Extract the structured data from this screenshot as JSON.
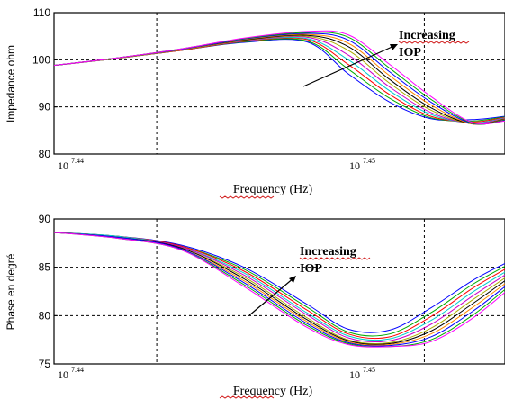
{
  "chart_data": [
    {
      "type": "line",
      "xlabel": "Frequency (Hz)",
      "ylabel": "Impedance ohm",
      "x_scale": "log",
      "xlim": [
        27300000,
        28380000
      ],
      "ylim": [
        80,
        110
      ],
      "y_ticks": [
        "80",
        "90",
        "100",
        "110"
      ],
      "x_tick_labels": [
        {
          "base": "10",
          "exp": "7.44",
          "x": 27542287
        },
        {
          "base": "10",
          "exp": "7.45",
          "x": 28183829
        }
      ],
      "grid": true,
      "annotation": {
        "line1": "Increasing",
        "line2": "IOP"
      },
      "x": [
        27300000,
        27450000,
        27600000,
        27750000,
        27900000,
        28000000,
        28100000,
        28200000,
        28300000,
        28380000
      ],
      "series": [
        {
          "color": "#0000ff",
          "values": [
            98.8,
            100.3,
            102.0,
            103.7,
            103.8,
            97.0,
            91.0,
            87.5,
            87.3,
            88.0
          ]
        },
        {
          "color": "#00aa00",
          "values": [
            98.8,
            100.3,
            102.0,
            103.8,
            104.0,
            98.0,
            91.8,
            87.7,
            87.0,
            87.9
          ]
        },
        {
          "color": "#ff0000",
          "values": [
            98.8,
            100.3,
            102.0,
            103.9,
            104.3,
            99.0,
            92.6,
            88.0,
            86.8,
            87.8
          ]
        },
        {
          "color": "#00cccc",
          "values": [
            98.8,
            100.3,
            102.1,
            104.0,
            104.5,
            100.0,
            93.4,
            88.4,
            86.6,
            87.7
          ]
        },
        {
          "color": "#cc00cc",
          "values": [
            98.8,
            100.3,
            102.1,
            104.0,
            104.8,
            101.0,
            94.2,
            88.8,
            86.5,
            87.6
          ]
        },
        {
          "color": "#aaaa00",
          "values": [
            98.8,
            100.3,
            102.1,
            104.1,
            105.0,
            102.0,
            95.0,
            89.3,
            86.4,
            87.5
          ]
        },
        {
          "color": "#000000",
          "values": [
            98.8,
            100.4,
            102.2,
            104.2,
            105.2,
            102.8,
            95.8,
            89.8,
            86.4,
            87.4
          ]
        },
        {
          "color": "#ff8800",
          "values": [
            98.8,
            100.4,
            102.2,
            104.3,
            105.4,
            103.5,
            96.6,
            90.4,
            86.4,
            87.3
          ]
        },
        {
          "color": "#0000ff",
          "values": [
            98.8,
            100.4,
            102.2,
            104.4,
            105.6,
            104.2,
            97.4,
            91.0,
            86.5,
            87.2
          ]
        },
        {
          "color": "#00aa00",
          "values": [
            98.8,
            100.4,
            102.3,
            104.5,
            105.8,
            104.8,
            98.2,
            91.6,
            86.6,
            87.1
          ]
        },
        {
          "color": "#ff00ff",
          "values": [
            98.8,
            100.4,
            102.3,
            104.6,
            106.0,
            105.3,
            99.0,
            92.2,
            86.7,
            87.0
          ]
        }
      ]
    },
    {
      "type": "line",
      "xlabel": "Frequency (Hz)",
      "ylabel": "Phase en degré",
      "x_scale": "log",
      "xlim": [
        27300000,
        28380000
      ],
      "ylim": [
        75,
        90
      ],
      "y_ticks": [
        "75",
        "80",
        "85",
        "90"
      ],
      "x_tick_labels": [
        {
          "base": "10",
          "exp": "7.44",
          "x": 27542287
        },
        {
          "base": "10",
          "exp": "7.45",
          "x": 28183829
        }
      ],
      "grid": true,
      "annotation": {
        "line1": "Increasing",
        "line2": "IOP"
      },
      "x": [
        27300000,
        27450000,
        27600000,
        27750000,
        27900000,
        28000000,
        28100000,
        28200000,
        28300000,
        28380000
      ],
      "series": [
        {
          "color": "#0000ff",
          "values": [
            88.6,
            88.2,
            87.3,
            85.0,
            81.2,
            78.6,
            78.5,
            80.8,
            83.6,
            85.4
          ]
        },
        {
          "color": "#00aa00",
          "values": [
            88.6,
            88.2,
            87.2,
            84.8,
            80.9,
            78.3,
            78.1,
            80.3,
            83.2,
            85.1
          ]
        },
        {
          "color": "#ff0000",
          "values": [
            88.6,
            88.2,
            87.2,
            84.6,
            80.6,
            78.1,
            77.8,
            79.9,
            82.8,
            84.8
          ]
        },
        {
          "color": "#00cccc",
          "values": [
            88.6,
            88.2,
            87.1,
            84.4,
            80.3,
            77.9,
            77.6,
            79.5,
            82.4,
            84.5
          ]
        },
        {
          "color": "#cc00cc",
          "values": [
            88.6,
            88.1,
            87.1,
            84.2,
            80.1,
            77.7,
            77.4,
            79.1,
            82.0,
            84.2
          ]
        },
        {
          "color": "#aaaa00",
          "values": [
            88.6,
            88.1,
            87.0,
            84.0,
            79.8,
            77.5,
            77.2,
            78.7,
            81.6,
            83.9
          ]
        },
        {
          "color": "#000000",
          "values": [
            88.6,
            88.1,
            87.0,
            83.8,
            79.6,
            77.4,
            77.1,
            78.4,
            81.2,
            83.6
          ]
        },
        {
          "color": "#ff8800",
          "values": [
            88.6,
            88.1,
            86.9,
            83.6,
            79.4,
            77.3,
            77.0,
            78.1,
            80.8,
            83.3
          ]
        },
        {
          "color": "#0000ff",
          "values": [
            88.6,
            88.1,
            86.9,
            83.4,
            79.2,
            77.2,
            76.9,
            77.8,
            80.4,
            83.0
          ]
        },
        {
          "color": "#00aa00",
          "values": [
            88.6,
            88.0,
            86.8,
            83.2,
            79.0,
            77.1,
            76.8,
            77.5,
            80.0,
            82.7
          ]
        },
        {
          "color": "#ff00ff",
          "values": [
            88.6,
            88.0,
            86.8,
            83.0,
            78.8,
            77.0,
            76.8,
            77.3,
            79.7,
            82.4
          ]
        }
      ]
    }
  ]
}
